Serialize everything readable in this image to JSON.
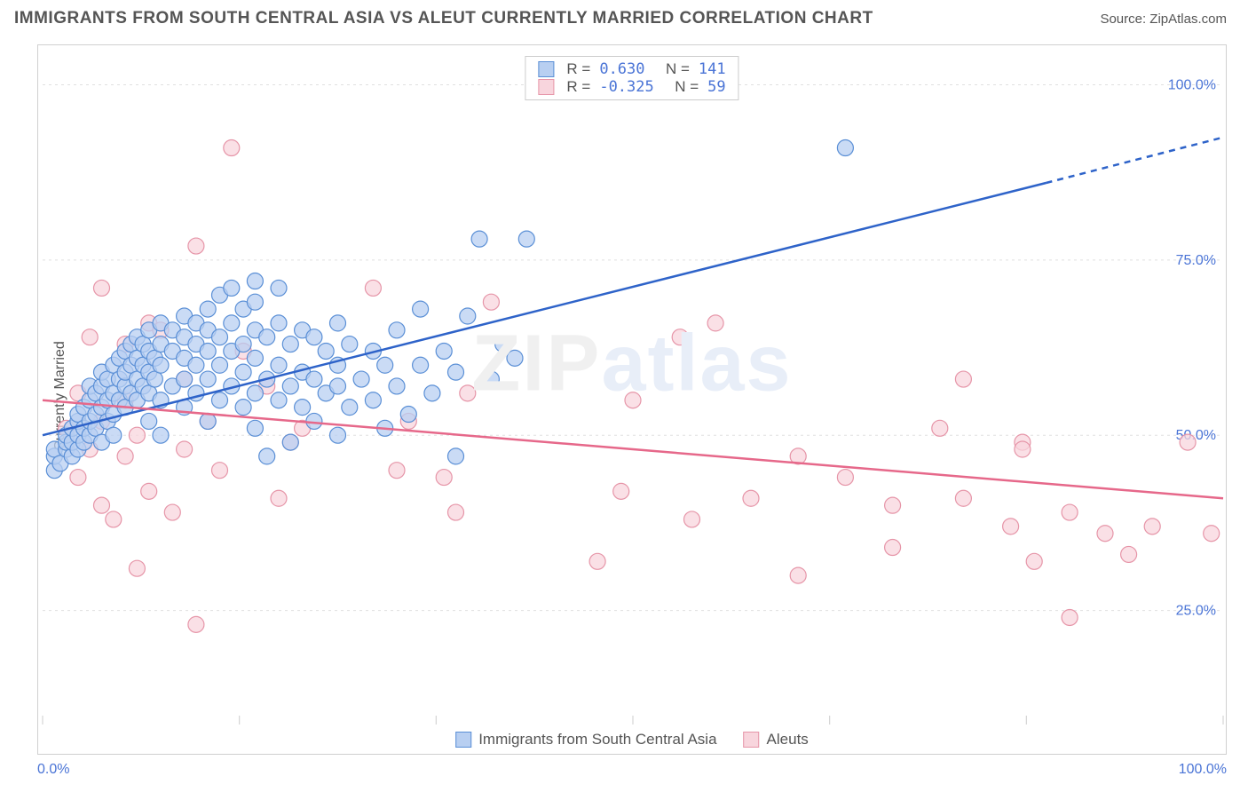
{
  "header": {
    "title": "IMMIGRANTS FROM SOUTH CENTRAL ASIA VS ALEUT CURRENTLY MARRIED CORRELATION CHART",
    "source": "Source: ZipAtlas.com"
  },
  "ylabel": "Currently Married",
  "watermark": {
    "zip": "ZIP",
    "atlas": "atlas"
  },
  "chart": {
    "type": "scatter",
    "xlim": [
      0,
      100
    ],
    "ylim": [
      10,
      105
    ],
    "y_ticks": [
      25,
      50,
      75,
      100
    ],
    "y_tick_labels": [
      "25.0%",
      "50.0%",
      "75.0%",
      "100.0%"
    ],
    "x_ticks": [
      0,
      16.67,
      33.33,
      50,
      66.67,
      83.33,
      100
    ],
    "x_end_labels": [
      "0.0%",
      "100.0%"
    ],
    "grid_color": "#e0e0e0",
    "background_color": "#ffffff",
    "axis_label_color": "#4a74d6",
    "marker_radius": 9,
    "marker_stroke_width": 1.2,
    "line_width": 2.5,
    "series": [
      {
        "name": "Immigrants from South Central Asia",
        "fill_color": "#b8cff1",
        "stroke_color": "#5a8fd6",
        "line_color": "#2e63c9",
        "R": "0.630",
        "N": "141",
        "regression": {
          "x1": 0,
          "y1": 50,
          "x2": 85,
          "y2": 86,
          "x2_dash": 100,
          "y2_dash": 92.5
        },
        "points": [
          [
            1,
            45
          ],
          [
            1,
            47
          ],
          [
            1,
            48
          ],
          [
            1.5,
            46
          ],
          [
            2,
            48
          ],
          [
            2,
            49
          ],
          [
            2,
            50
          ],
          [
            2.5,
            47
          ],
          [
            2.5,
            49
          ],
          [
            2.5,
            51
          ],
          [
            3,
            48
          ],
          [
            3,
            50
          ],
          [
            3,
            52
          ],
          [
            3,
            53
          ],
          [
            3.5,
            49
          ],
          [
            3.5,
            51
          ],
          [
            3.5,
            54
          ],
          [
            4,
            50
          ],
          [
            4,
            52
          ],
          [
            4,
            55
          ],
          [
            4,
            57
          ],
          [
            4.5,
            51
          ],
          [
            4.5,
            53
          ],
          [
            4.5,
            56
          ],
          [
            5,
            49
          ],
          [
            5,
            54
          ],
          [
            5,
            57
          ],
          [
            5,
            59
          ],
          [
            5.5,
            52
          ],
          [
            5.5,
            55
          ],
          [
            5.5,
            58
          ],
          [
            6,
            50
          ],
          [
            6,
            53
          ],
          [
            6,
            56
          ],
          [
            6,
            60
          ],
          [
            6.5,
            55
          ],
          [
            6.5,
            58
          ],
          [
            6.5,
            61
          ],
          [
            7,
            54
          ],
          [
            7,
            57
          ],
          [
            7,
            59
          ],
          [
            7,
            62
          ],
          [
            7.5,
            56
          ],
          [
            7.5,
            60
          ],
          [
            7.5,
            63
          ],
          [
            8,
            55
          ],
          [
            8,
            58
          ],
          [
            8,
            61
          ],
          [
            8,
            64
          ],
          [
            8.5,
            57
          ],
          [
            8.5,
            60
          ],
          [
            8.5,
            63
          ],
          [
            9,
            52
          ],
          [
            9,
            56
          ],
          [
            9,
            59
          ],
          [
            9,
            62
          ],
          [
            9,
            65
          ],
          [
            9.5,
            58
          ],
          [
            9.5,
            61
          ],
          [
            10,
            50
          ],
          [
            10,
            55
          ],
          [
            10,
            60
          ],
          [
            10,
            63
          ],
          [
            10,
            66
          ],
          [
            11,
            57
          ],
          [
            11,
            62
          ],
          [
            11,
            65
          ],
          [
            12,
            54
          ],
          [
            12,
            58
          ],
          [
            12,
            61
          ],
          [
            12,
            64
          ],
          [
            12,
            67
          ],
          [
            13,
            56
          ],
          [
            13,
            60
          ],
          [
            13,
            63
          ],
          [
            13,
            66
          ],
          [
            14,
            52
          ],
          [
            14,
            58
          ],
          [
            14,
            62
          ],
          [
            14,
            65
          ],
          [
            14,
            68
          ],
          [
            15,
            55
          ],
          [
            15,
            60
          ],
          [
            15,
            64
          ],
          [
            15,
            70
          ],
          [
            16,
            57
          ],
          [
            16,
            62
          ],
          [
            16,
            66
          ],
          [
            16,
            71
          ],
          [
            17,
            54
          ],
          [
            17,
            59
          ],
          [
            17,
            63
          ],
          [
            17,
            68
          ],
          [
            18,
            51
          ],
          [
            18,
            56
          ],
          [
            18,
            61
          ],
          [
            18,
            65
          ],
          [
            18,
            69
          ],
          [
            18,
            72
          ],
          [
            19,
            47
          ],
          [
            19,
            58
          ],
          [
            19,
            64
          ],
          [
            20,
            55
          ],
          [
            20,
            60
          ],
          [
            20,
            66
          ],
          [
            20,
            71
          ],
          [
            21,
            49
          ],
          [
            21,
            57
          ],
          [
            21,
            63
          ],
          [
            22,
            54
          ],
          [
            22,
            59
          ],
          [
            22,
            65
          ],
          [
            23,
            52
          ],
          [
            23,
            58
          ],
          [
            23,
            64
          ],
          [
            24,
            56
          ],
          [
            24,
            62
          ],
          [
            25,
            50
          ],
          [
            25,
            57
          ],
          [
            25,
            60
          ],
          [
            25,
            66
          ],
          [
            26,
            54
          ],
          [
            26,
            63
          ],
          [
            27,
            58
          ],
          [
            28,
            55
          ],
          [
            28,
            62
          ],
          [
            29,
            51
          ],
          [
            29,
            60
          ],
          [
            30,
            57
          ],
          [
            30,
            65
          ],
          [
            31,
            53
          ],
          [
            32,
            60
          ],
          [
            32,
            68
          ],
          [
            33,
            56
          ],
          [
            34,
            62
          ],
          [
            35,
            47
          ],
          [
            35,
            59
          ],
          [
            36,
            67
          ],
          [
            37,
            78
          ],
          [
            38,
            58
          ],
          [
            39,
            63
          ],
          [
            40,
            61
          ],
          [
            41,
            78
          ],
          [
            68,
            91
          ]
        ]
      },
      {
        "name": "Aleuts",
        "fill_color": "#f8d5dd",
        "stroke_color": "#e695a8",
        "line_color": "#e6688a",
        "R": "-0.325",
        "N": "59",
        "regression": {
          "x1": 0,
          "y1": 55,
          "x2": 100,
          "y2": 41,
          "x2_dash": 100,
          "y2_dash": 41
        },
        "points": [
          [
            2,
            51
          ],
          [
            3,
            44
          ],
          [
            3,
            56
          ],
          [
            4,
            48
          ],
          [
            4,
            64
          ],
          [
            5,
            40
          ],
          [
            5,
            52
          ],
          [
            5,
            71
          ],
          [
            6,
            38
          ],
          [
            7,
            47
          ],
          [
            7,
            55
          ],
          [
            7,
            63
          ],
          [
            8,
            31
          ],
          [
            8,
            50
          ],
          [
            9,
            42
          ],
          [
            9,
            66
          ],
          [
            10,
            65
          ],
          [
            11,
            39
          ],
          [
            12,
            48
          ],
          [
            12,
            58
          ],
          [
            13,
            23
          ],
          [
            13,
            77
          ],
          [
            14,
            52
          ],
          [
            15,
            45
          ],
          [
            16,
            91
          ],
          [
            17,
            62
          ],
          [
            19,
            57
          ],
          [
            20,
            41
          ],
          [
            21,
            49
          ],
          [
            22,
            51
          ],
          [
            28,
            71
          ],
          [
            30,
            45
          ],
          [
            31,
            52
          ],
          [
            34,
            44
          ],
          [
            35,
            39
          ],
          [
            36,
            56
          ],
          [
            38,
            69
          ],
          [
            47,
            32
          ],
          [
            49,
            42
          ],
          [
            50,
            55
          ],
          [
            54,
            64
          ],
          [
            55,
            38
          ],
          [
            57,
            66
          ],
          [
            60,
            41
          ],
          [
            64,
            47
          ],
          [
            64,
            30
          ],
          [
            68,
            44
          ],
          [
            72,
            34
          ],
          [
            72,
            40
          ],
          [
            76,
            51
          ],
          [
            78,
            58
          ],
          [
            78,
            41
          ],
          [
            82,
            37
          ],
          [
            83,
            49
          ],
          [
            83,
            48
          ],
          [
            84,
            32
          ],
          [
            87,
            39
          ],
          [
            87,
            24
          ],
          [
            90,
            36
          ],
          [
            92,
            33
          ],
          [
            94,
            37
          ],
          [
            97,
            49
          ],
          [
            99,
            36
          ]
        ]
      }
    ]
  },
  "bottom_legend": [
    {
      "label": "Immigrants from South Central Asia",
      "fill": "#b8cff1",
      "stroke": "#5a8fd6"
    },
    {
      "label": "Aleuts",
      "fill": "#f8d5dd",
      "stroke": "#e695a8"
    }
  ]
}
